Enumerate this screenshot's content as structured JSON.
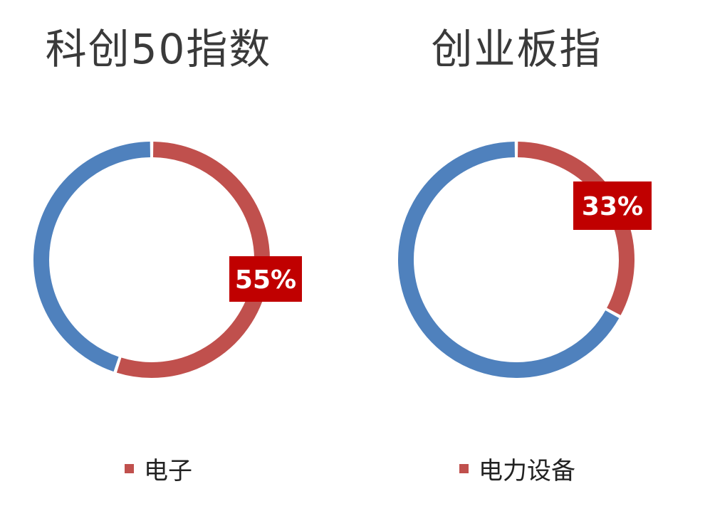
{
  "colors": {
    "highlight": "#c0504d",
    "rest": "#4f81bd",
    "label_bg": "#c00000"
  },
  "chart_data": [
    {
      "type": "pie",
      "title": "科创50指数",
      "slices": [
        {
          "name": "电子",
          "value": 55,
          "label": "55%"
        },
        {
          "value": 45
        }
      ],
      "legend": {
        "entries": [
          "电子"
        ],
        "placement": "bottom"
      }
    },
    {
      "type": "pie",
      "title": "创业板指",
      "slices": [
        {
          "name": "电力设备",
          "value": 33,
          "label": "33%"
        },
        {
          "value": 67
        }
      ],
      "legend": {
        "entries": [
          "电力设备"
        ],
        "placement": "bottom"
      }
    }
  ]
}
